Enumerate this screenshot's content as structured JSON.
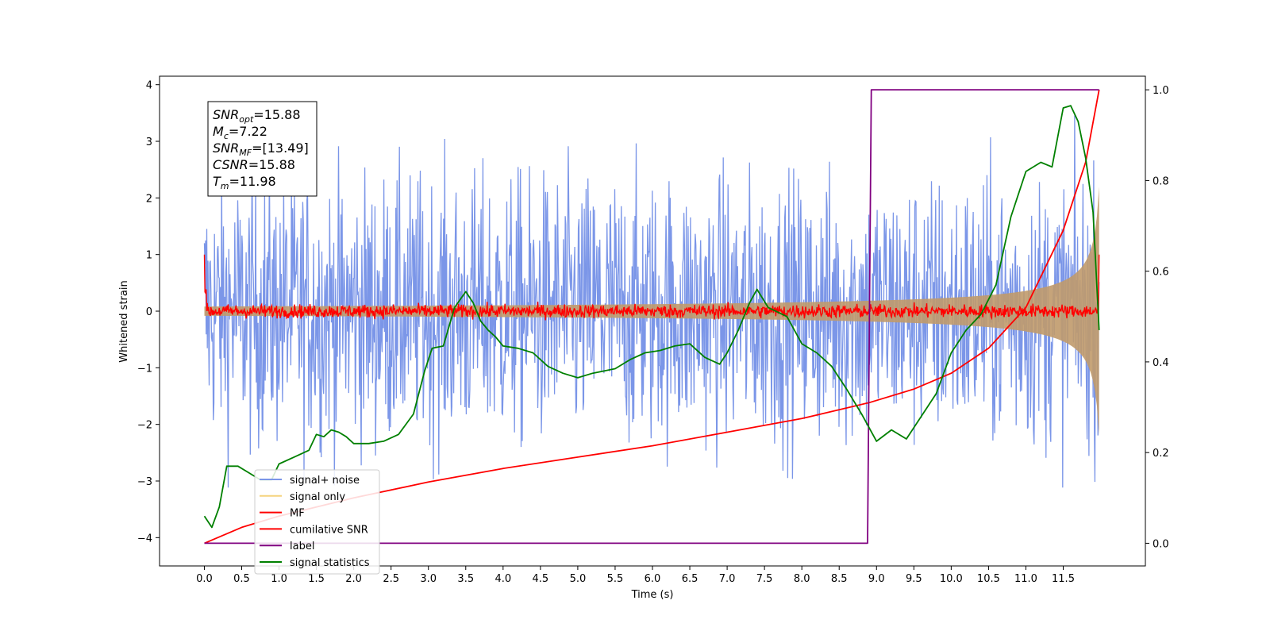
{
  "chart_data": {
    "type": "line",
    "xlabel": "Time (s)",
    "ylabel": "Whitened strain",
    "x_ticks": [
      "0.0",
      "0.5",
      "1.0",
      "1.5",
      "2.0",
      "2.5",
      "3.0",
      "3.5",
      "4.0",
      "4.5",
      "5.0",
      "5.5",
      "6.0",
      "6.5",
      "7.0",
      "7.5",
      "8.0",
      "8.5",
      "9.0",
      "9.5",
      "10.0",
      "10.5",
      "11.0",
      "11.5"
    ],
    "y_left_ticks": [
      "4",
      "3",
      "2",
      "1",
      "0",
      "−1",
      "−2",
      "−3",
      "−4"
    ],
    "y_right_ticks": [
      "1.0",
      "0.8",
      "0.6",
      "0.4",
      "0.2",
      "0.0"
    ],
    "xlim": [
      -0.6,
      12.6
    ],
    "ylim_left": [
      -4.5,
      4.15
    ],
    "ylim_right": [
      -0.05,
      1.03
    ],
    "stats": [
      {
        "name": "SNR",
        "sub": "opt",
        "value": "=15.88"
      },
      {
        "name": "M",
        "sub": "c",
        "value": "=7.22"
      },
      {
        "name": "SNR",
        "sub": "MF",
        "value": "=[13.49]"
      },
      {
        "name": "CSNR",
        "sub": "",
        "value": "=15.88"
      },
      {
        "name": "T",
        "sub": "m",
        "value": "=11.98"
      }
    ],
    "legend": {
      "placement": "lower-left",
      "entries": [
        {
          "label": "signal+ noise",
          "color": "#7b96e8"
        },
        {
          "label": "signal only",
          "color": "#f5d37e"
        },
        {
          "label": "MF",
          "color": "#ff0000"
        },
        {
          "label": "cumilative SNR",
          "color": "#ff0000"
        },
        {
          "label": "label",
          "color": "#800080"
        },
        {
          "label": "signal statistics",
          "color": "#008000"
        }
      ]
    },
    "series": [
      {
        "name": "signal+ noise",
        "axis": "left",
        "color": "#7b96e8",
        "noise_amplitude": 1.2,
        "duration": 11.98
      },
      {
        "name": "signal only",
        "axis": "left",
        "color": "#c09a6b",
        "chirp_start_amplitude": 0.02,
        "chirp_end_amplitude": 2.2
      },
      {
        "name": "MF",
        "axis": "left",
        "color": "#ff0000",
        "noise_amplitude": 0.06,
        "edge_value": 1.0
      },
      {
        "name": "cumilative SNR",
        "axis": "right",
        "x": [
          0.0,
          0.5,
          1.0,
          2.0,
          3.0,
          4.0,
          5.0,
          6.0,
          7.0,
          8.0,
          8.9,
          9.5,
          10.0,
          10.5,
          11.0,
          11.5,
          11.8,
          11.98
        ],
        "y": [
          0.0,
          0.035,
          0.06,
          0.1,
          0.135,
          0.165,
          0.19,
          0.215,
          0.245,
          0.275,
          0.31,
          0.34,
          0.375,
          0.43,
          0.52,
          0.69,
          0.84,
          1.0
        ]
      },
      {
        "name": "label",
        "axis": "right",
        "x": [
          0.0,
          8.88,
          8.93,
          11.98
        ],
        "y": [
          0.0,
          0.0,
          1.0,
          1.0
        ]
      },
      {
        "name": "signal statistics",
        "axis": "right",
        "x": [
          0.0,
          0.1,
          0.2,
          0.3,
          0.45,
          0.6,
          0.75,
          0.9,
          1.0,
          1.2,
          1.4,
          1.5,
          1.6,
          1.7,
          1.8,
          1.9,
          2.0,
          2.2,
          2.4,
          2.6,
          2.8,
          2.95,
          3.05,
          3.2,
          3.35,
          3.5,
          3.6,
          3.7,
          3.8,
          3.9,
          4.0,
          4.2,
          4.4,
          4.6,
          4.8,
          5.0,
          5.2,
          5.5,
          5.7,
          5.9,
          6.1,
          6.3,
          6.5,
          6.7,
          6.9,
          7.0,
          7.15,
          7.3,
          7.4,
          7.55,
          7.8,
          8.0,
          8.2,
          8.4,
          8.6,
          8.8,
          9.0,
          9.2,
          9.4,
          9.6,
          9.8,
          10.0,
          10.2,
          10.4,
          10.6,
          10.8,
          11.0,
          11.2,
          11.35,
          11.5,
          11.6,
          11.7,
          11.8,
          11.9,
          11.98
        ],
        "y": [
          0.06,
          0.035,
          0.08,
          0.17,
          0.17,
          0.155,
          0.14,
          0.14,
          0.175,
          0.19,
          0.205,
          0.24,
          0.235,
          0.25,
          0.245,
          0.235,
          0.22,
          0.22,
          0.225,
          0.24,
          0.285,
          0.38,
          0.43,
          0.435,
          0.52,
          0.555,
          0.53,
          0.49,
          0.47,
          0.455,
          0.435,
          0.43,
          0.42,
          0.39,
          0.375,
          0.365,
          0.375,
          0.385,
          0.405,
          0.42,
          0.425,
          0.435,
          0.44,
          0.41,
          0.395,
          0.42,
          0.47,
          0.53,
          0.56,
          0.52,
          0.5,
          0.44,
          0.42,
          0.39,
          0.34,
          0.285,
          0.225,
          0.25,
          0.23,
          0.28,
          0.33,
          0.42,
          0.47,
          0.505,
          0.57,
          0.72,
          0.82,
          0.84,
          0.83,
          0.96,
          0.965,
          0.93,
          0.85,
          0.73,
          0.47
        ]
      }
    ]
  }
}
